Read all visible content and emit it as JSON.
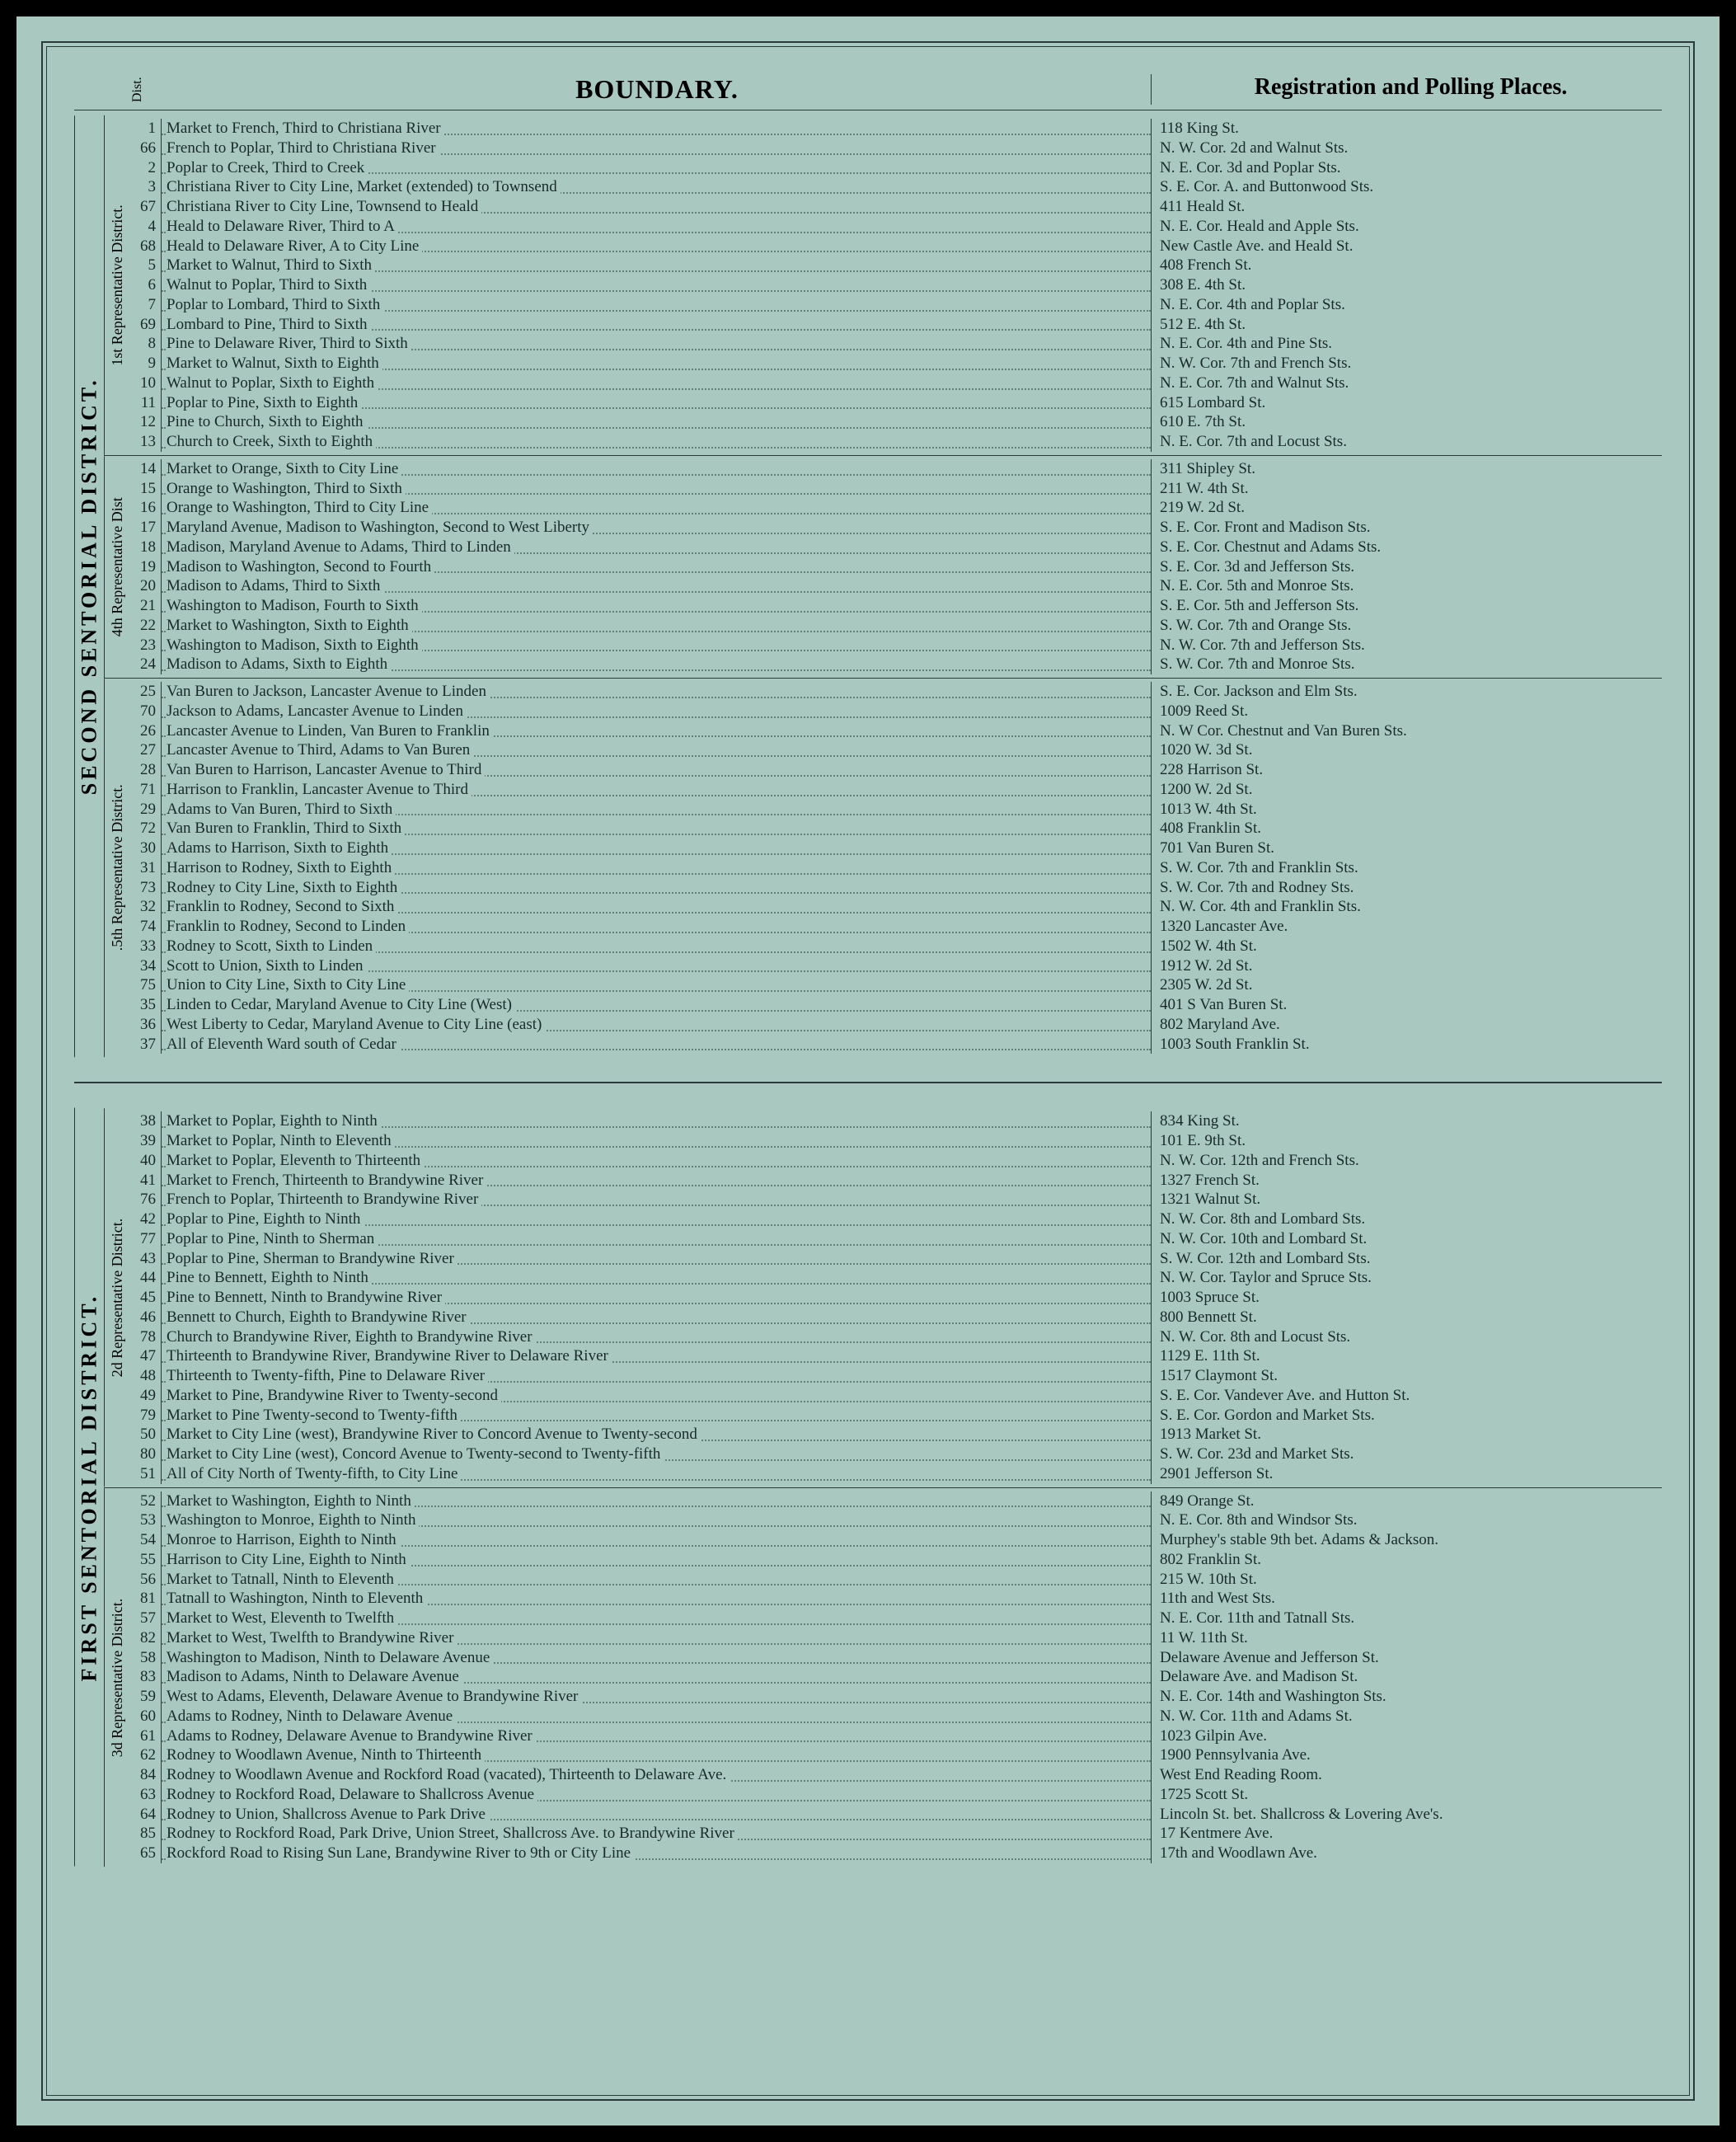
{
  "header": {
    "dist_label": "Dist.",
    "boundary_label": "BOUNDARY.",
    "polling_label": "Registration and Polling Places."
  },
  "sentorial_blocks": [
    {
      "label": "SECOND SENTORIAL DISTRICT.",
      "rep_groups": [
        {
          "label": "1st Representative District.",
          "rows": [
            {
              "n": "1",
              "b": "Market to French, Third to Christiana River",
              "p": "118 King St."
            },
            {
              "n": "66",
              "b": "French to Poplar, Third to Christiana River",
              "p": "N. W. Cor. 2d and Walnut Sts."
            },
            {
              "n": "2",
              "b": "Poplar to Creek, Third to Creek",
              "p": "N. E. Cor. 3d and Poplar Sts."
            },
            {
              "n": "3",
              "b": "Christiana River to City Line, Market (extended) to Townsend",
              "p": "S. E. Cor. A. and Buttonwood Sts."
            },
            {
              "n": "67",
              "b": "Christiana River to City Line, Townsend to Heald",
              "p": "411 Heald St."
            },
            {
              "n": "4",
              "b": "Heald to Delaware River, Third to A",
              "p": "N. E. Cor. Heald and Apple Sts."
            },
            {
              "n": "68",
              "b": "Heald to Delaware River, A to City Line",
              "p": "New Castle Ave. and Heald St."
            },
            {
              "n": "5",
              "b": "Market to Walnut, Third to Sixth",
              "p": "408 French St."
            },
            {
              "n": "6",
              "b": "Walnut to Poplar, Third to Sixth",
              "p": "308 E. 4th St."
            },
            {
              "n": "7",
              "b": "Poplar to Lombard, Third to Sixth",
              "p": "N. E. Cor. 4th and Poplar Sts."
            },
            {
              "n": "69",
              "b": "Lombard to Pine, Third to Sixth",
              "p": "512 E. 4th St."
            },
            {
              "n": "8",
              "b": "Pine to Delaware River, Third to Sixth",
              "p": "N. E. Cor. 4th and Pine Sts."
            },
            {
              "n": "9",
              "b": "Market to Walnut, Sixth to Eighth",
              "p": "N. W. Cor. 7th and French Sts."
            },
            {
              "n": "10",
              "b": "Walnut to Poplar, Sixth to Eighth",
              "p": "N. E. Cor. 7th and Walnut Sts."
            },
            {
              "n": "11",
              "b": "Poplar to Pine, Sixth to Eighth",
              "p": "615 Lombard St."
            },
            {
              "n": "12",
              "b": "Pine to Church, Sixth to Eighth",
              "p": "610 E. 7th St."
            },
            {
              "n": "13",
              "b": "Church to Creek, Sixth to Eighth",
              "p": "N. E. Cor. 7th and Locust Sts."
            }
          ]
        },
        {
          "label": "4th Representative Dist",
          "rows": [
            {
              "n": "14",
              "b": "Market to Orange, Sixth to City Line",
              "p": "311 Shipley St."
            },
            {
              "n": "15",
              "b": "Orange to Washington, Third to Sixth",
              "p": "211 W. 4th St."
            },
            {
              "n": "16",
              "b": "Orange to Washington, Third to City Line",
              "p": "219 W. 2d St."
            },
            {
              "n": "17",
              "b": "Maryland Avenue, Madison to Washington, Second to West Liberty",
              "p": "S. E. Cor. Front and Madison Sts."
            },
            {
              "n": "18",
              "b": "Madison, Maryland Avenue to Adams, Third to Linden",
              "p": "S. E. Cor. Chestnut and Adams Sts."
            },
            {
              "n": "19",
              "b": "Madison to Washington, Second to Fourth",
              "p": "S. E. Cor. 3d and Jefferson Sts."
            },
            {
              "n": "20",
              "b": "Madison to Adams, Third to Sixth",
              "p": "N. E. Cor. 5th and Monroe Sts."
            },
            {
              "n": "21",
              "b": "Washington to Madison, Fourth to Sixth",
              "p": "S. E. Cor. 5th and Jefferson Sts."
            },
            {
              "n": "22",
              "b": "Market to Washington, Sixth to Eighth",
              "p": "S. W. Cor. 7th and Orange Sts."
            },
            {
              "n": "23",
              "b": "Washington to Madison, Sixth to Eighth",
              "p": "N. W. Cor. 7th and Jefferson Sts."
            },
            {
              "n": "24",
              "b": "Madison to Adams, Sixth to Eighth",
              "p": "S. W. Cor. 7th and Monroe Sts."
            }
          ]
        },
        {
          "label": ".5th Representative District.",
          "rows": [
            {
              "n": "25",
              "b": "Van Buren to Jackson, Lancaster Avenue to Linden",
              "p": "S. E. Cor. Jackson and Elm Sts."
            },
            {
              "n": "70",
              "b": "Jackson to Adams, Lancaster Avenue to Linden",
              "p": "1009 Reed St."
            },
            {
              "n": "26",
              "b": "Lancaster Avenue to Linden, Van Buren to Franklin",
              "p": "N. W Cor. Chestnut and Van Buren Sts."
            },
            {
              "n": "27",
              "b": "Lancaster Avenue to Third, Adams to Van Buren",
              "p": "1020 W. 3d St."
            },
            {
              "n": "28",
              "b": "Van Buren to Harrison, Lancaster Avenue to Third",
              "p": "228 Harrison St."
            },
            {
              "n": "71",
              "b": "Harrison to Franklin, Lancaster Avenue to Third",
              "p": "1200 W. 2d St."
            },
            {
              "n": "29",
              "b": "Adams to Van Buren, Third to Sixth",
              "p": "1013 W. 4th St."
            },
            {
              "n": "72",
              "b": "Van Buren to Franklin, Third to Sixth",
              "p": "408 Franklin St."
            },
            {
              "n": "30",
              "b": "Adams to Harrison, Sixth to Eighth",
              "p": "701 Van Buren St."
            },
            {
              "n": "31",
              "b": "Harrison to Rodney, Sixth to Eighth",
              "p": "S. W. Cor. 7th and Franklin Sts."
            },
            {
              "n": "73",
              "b": "Rodney to City Line, Sixth to Eighth",
              "p": "S. W. Cor. 7th and Rodney Sts."
            },
            {
              "n": "32",
              "b": "Franklin to Rodney, Second to Sixth",
              "p": "N. W. Cor. 4th and Franklin Sts."
            },
            {
              "n": "74",
              "b": "Franklin to Rodney, Second to Linden",
              "p": "1320 Lancaster Ave."
            },
            {
              "n": "33",
              "b": "Rodney to Scott, Sixth to Linden",
              "p": "1502 W. 4th St."
            },
            {
              "n": "34",
              "b": "Scott to Union, Sixth to Linden",
              "p": "1912 W. 2d St."
            },
            {
              "n": "75",
              "b": "Union to City Line, Sixth to City Line",
              "p": "2305 W. 2d St."
            },
            {
              "n": "35",
              "b": "Linden to Cedar, Maryland Avenue to City Line (West)",
              "p": "401 S Van Buren St."
            },
            {
              "n": "36",
              "b": "West Liberty to Cedar, Maryland Avenue to City Line (east)",
              "p": "802 Maryland Ave."
            },
            {
              "n": "37",
              "b": "All of Eleventh Ward south of Cedar",
              "p": "1003 South Franklin St."
            }
          ]
        }
      ]
    },
    {
      "label": "FIRST SENTORIAL DISTRICT.",
      "rep_groups": [
        {
          "label": "2d Representative District.",
          "rows": [
            {
              "n": "38",
              "b": "Market to Poplar, Eighth to Ninth",
              "p": "834 King St."
            },
            {
              "n": "39",
              "b": "Market to Poplar, Ninth to Eleventh",
              "p": "101 E. 9th St."
            },
            {
              "n": "40",
              "b": "Market to Poplar, Eleventh to Thirteenth",
              "p": "N. W. Cor. 12th and French Sts."
            },
            {
              "n": "41",
              "b": "Market to French, Thirteenth to Brandywine River",
              "p": "1327 French St."
            },
            {
              "n": "76",
              "b": "French to Poplar, Thirteenth to Brandywine River",
              "p": "1321 Walnut St."
            },
            {
              "n": "42",
              "b": "Poplar to Pine, Eighth to Ninth",
              "p": "N. W. Cor. 8th and Lombard Sts."
            },
            {
              "n": "77",
              "b": "Poplar to Pine, Ninth to Sherman",
              "p": "N. W. Cor. 10th and Lombard St."
            },
            {
              "n": "43",
              "b": "Poplar to Pine, Sherman to Brandywine River",
              "p": "S. W. Cor. 12th and Lombard Sts."
            },
            {
              "n": "44",
              "b": "Pine to Bennett, Eighth to Ninth",
              "p": "N. W. Cor. Taylor and Spruce Sts."
            },
            {
              "n": "45",
              "b": "Pine to Bennett, Ninth to Brandywine River",
              "p": "1003 Spruce St."
            },
            {
              "n": "46",
              "b": "Bennett to Church, Eighth to Brandywine River",
              "p": "800 Bennett St."
            },
            {
              "n": "78",
              "b": "Church to Brandywine River, Eighth to Brandywine River",
              "p": "N. W. Cor. 8th and Locust Sts."
            },
            {
              "n": "47",
              "b": "Thirteenth to Brandywine River, Brandywine River to Delaware River",
              "p": "1129 E. 11th St."
            },
            {
              "n": "48",
              "b": "Thirteenth to Twenty-fifth, Pine to Delaware River",
              "p": "1517 Claymont St."
            },
            {
              "n": "49",
              "b": "Market to Pine, Brandywine River to Twenty-second",
              "p": "S. E. Cor. Vandever Ave. and Hutton St."
            },
            {
              "n": "79",
              "b": "Market to Pine Twenty-second to Twenty-fifth",
              "p": "S. E. Cor. Gordon and Market Sts."
            },
            {
              "n": "50",
              "b": "Market to City Line (west), Brandywine River to Concord Avenue to Twenty-second",
              "p": "1913 Market St."
            },
            {
              "n": "80",
              "b": "Market to City Line (west), Concord Avenue to Twenty-second to Twenty-fifth",
              "p": "S. W. Cor. 23d and Market Sts."
            },
            {
              "n": "51",
              "b": "All of City North of Twenty-fifth, to City Line",
              "p": "2901 Jefferson St."
            }
          ]
        },
        {
          "label": "3d Representative District.",
          "rows": [
            {
              "n": "52",
              "b": "Market to Washington, Eighth to Ninth",
              "p": "849 Orange St."
            },
            {
              "n": "53",
              "b": "Washington to Monroe, Eighth to Ninth",
              "p": "N. E. Cor. 8th and Windsor Sts."
            },
            {
              "n": "54",
              "b": "Monroe to Harrison, Eighth to Ninth",
              "p": "Murphey's stable 9th bet. Adams & Jackson."
            },
            {
              "n": "55",
              "b": "Harrison to City Line, Eighth to Ninth",
              "p": "802 Franklin St."
            },
            {
              "n": "56",
              "b": "Market to Tatnall, Ninth to Eleventh",
              "p": "215 W. 10th St."
            },
            {
              "n": "81",
              "b": "Tatnall to Washington, Ninth to Eleventh",
              "p": "11th and West Sts."
            },
            {
              "n": "57",
              "b": "Market to West, Eleventh to Twelfth",
              "p": "N. E. Cor. 11th and Tatnall Sts."
            },
            {
              "n": "82",
              "b": "Market to West, Twelfth to Brandywine River",
              "p": "11 W. 11th St."
            },
            {
              "n": "58",
              "b": "Washington to Madison, Ninth to Delaware Avenue",
              "p": "Delaware Avenue and Jefferson St."
            },
            {
              "n": "83",
              "b": "Madison to Adams, Ninth to Delaware Avenue",
              "p": "Delaware Ave. and Madison St."
            },
            {
              "n": "59",
              "b": "West to Adams, Eleventh, Delaware Avenue to Brandywine River",
              "p": "N. E. Cor. 14th and Washington Sts."
            },
            {
              "n": "60",
              "b": "Adams to Rodney, Ninth to Delaware Avenue",
              "p": "N. W. Cor. 11th and Adams St."
            },
            {
              "n": "61",
              "b": "Adams to Rodney, Delaware Avenue to Brandywine River",
              "p": "1023 Gilpin Ave."
            },
            {
              "n": "62",
              "b": "Rodney to Woodlawn Avenue, Ninth to Thirteenth",
              "p": "1900 Pennsylvania Ave."
            },
            {
              "n": "84",
              "b": "Rodney to Woodlawn Avenue and Rockford Road (vacated), Thirteenth to Delaware Ave.",
              "p": "West End Reading Room."
            },
            {
              "n": "63",
              "b": "Rodney to Rockford Road, Delaware to Shallcross Avenue",
              "p": "1725 Scott St."
            },
            {
              "n": "64",
              "b": "Rodney to Union, Shallcross Avenue to Park Drive",
              "p": "Lincoln St. bet. Shallcross & Lovering Ave's."
            },
            {
              "n": "85",
              "b": "Rodney to Rockford Road, Park Drive, Union Street, Shallcross Ave. to Brandywine River",
              "p": "17 Kentmere Ave."
            },
            {
              "n": "65",
              "b": "Rockford Road to Rising Sun Lane, Brandywine River to 9th or City Line",
              "p": "17th and Woodlawn Ave."
            }
          ]
        }
      ]
    }
  ]
}
